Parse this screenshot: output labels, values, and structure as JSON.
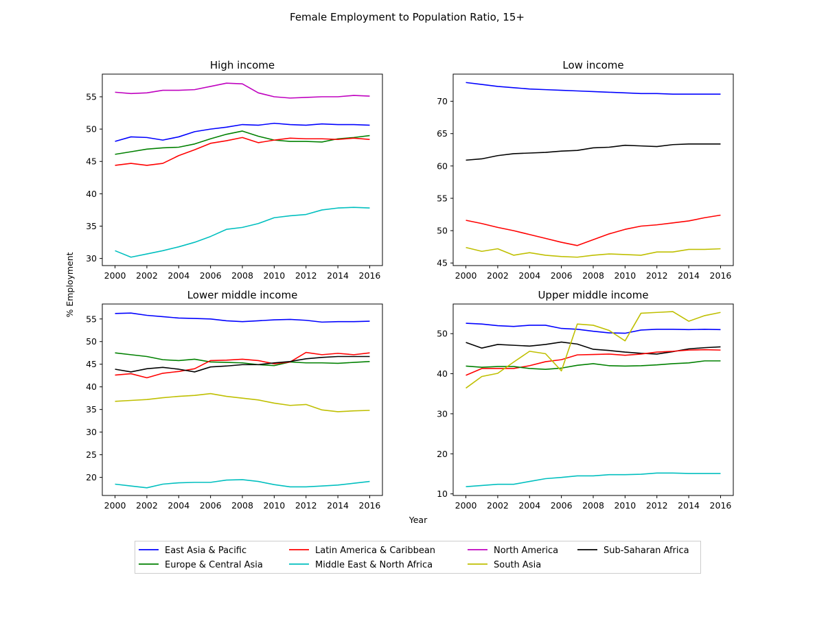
{
  "figure": {
    "title": "Female Employment to Population Ratio, 15+",
    "xlabel": "Year",
    "ylabel": "% Employment"
  },
  "colors": {
    "East Asia & Pacific": "#0000ff",
    "Europe & Central Asia": "#008000",
    "Latin America & Caribbean": "#ff0000",
    "Middle East & North Africa": "#00bfbf",
    "North America": "#bf00bf",
    "South Asia": "#bfbf00",
    "Sub-Saharan Africa": "#000000"
  },
  "legend": {
    "placement": "bottom-center",
    "entries": [
      "East Asia & Pacific",
      "Europe & Central Asia",
      "Latin America & Caribbean",
      "Middle East & North Africa",
      "North America",
      "South Asia",
      "Sub-Saharan Africa"
    ]
  },
  "chart_data": [
    {
      "type": "line",
      "title": "High income",
      "x": [
        2000,
        2001,
        2002,
        2003,
        2004,
        2005,
        2006,
        2007,
        2008,
        2009,
        2010,
        2011,
        2012,
        2013,
        2014,
        2015,
        2016
      ],
      "xticks": [
        "2000",
        "2002",
        "2004",
        "2006",
        "2008",
        "2010",
        "2012",
        "2014",
        "2016"
      ],
      "yticks": [
        "30",
        "35",
        "40",
        "45",
        "50",
        "55"
      ],
      "xlim": [
        1999.2,
        2016.8
      ],
      "ylim": [
        28.9,
        58.5
      ],
      "series": [
        {
          "name": "North America",
          "values": [
            55.7,
            55.5,
            55.6,
            56.0,
            56.0,
            56.1,
            56.6,
            57.1,
            57.0,
            55.6,
            55.0,
            54.8,
            54.9,
            55.0,
            55.0,
            55.2,
            55.1
          ]
        },
        {
          "name": "East Asia & Pacific",
          "values": [
            48.1,
            48.8,
            48.7,
            48.3,
            48.8,
            49.6,
            50.0,
            50.3,
            50.7,
            50.6,
            50.9,
            50.7,
            50.6,
            50.8,
            50.7,
            50.7,
            50.6
          ]
        },
        {
          "name": "Europe & Central Asia",
          "values": [
            46.1,
            46.5,
            46.9,
            47.1,
            47.2,
            47.7,
            48.5,
            49.2,
            49.7,
            48.9,
            48.3,
            48.1,
            48.1,
            48.0,
            48.5,
            48.7,
            49.0
          ]
        },
        {
          "name": "Latin America & Caribbean",
          "values": [
            44.4,
            44.7,
            44.4,
            44.7,
            45.9,
            46.8,
            47.8,
            48.2,
            48.7,
            47.9,
            48.3,
            48.6,
            48.5,
            48.5,
            48.4,
            48.6,
            48.4
          ]
        },
        {
          "name": "Middle East & North Africa",
          "values": [
            31.2,
            30.2,
            30.7,
            31.2,
            31.8,
            32.5,
            33.4,
            34.5,
            34.8,
            35.4,
            36.3,
            36.6,
            36.8,
            37.5,
            37.8,
            37.9,
            37.8
          ]
        }
      ]
    },
    {
      "type": "line",
      "title": "Low income",
      "x": [
        2000,
        2001,
        2002,
        2003,
        2004,
        2005,
        2006,
        2007,
        2008,
        2009,
        2010,
        2011,
        2012,
        2013,
        2014,
        2015,
        2016
      ],
      "xticks": [
        "2000",
        "2002",
        "2004",
        "2006",
        "2008",
        "2010",
        "2012",
        "2014",
        "2016"
      ],
      "yticks": [
        "45",
        "50",
        "55",
        "60",
        "65",
        "70"
      ],
      "xlim": [
        1999.2,
        2016.8
      ],
      "ylim": [
        44.6,
        74.2
      ],
      "series": [
        {
          "name": "East Asia & Pacific",
          "values": [
            72.9,
            72.6,
            72.3,
            72.1,
            71.9,
            71.8,
            71.7,
            71.6,
            71.5,
            71.4,
            71.3,
            71.2,
            71.2,
            71.1,
            71.1,
            71.1,
            71.1
          ]
        },
        {
          "name": "Sub-Saharan Africa",
          "values": [
            60.9,
            61.1,
            61.6,
            61.9,
            62.0,
            62.1,
            62.3,
            62.4,
            62.8,
            62.9,
            63.2,
            63.1,
            63.0,
            63.3,
            63.4,
            63.4,
            63.4
          ]
        },
        {
          "name": "Latin America & Caribbean",
          "values": [
            51.6,
            51.1,
            50.5,
            50.0,
            49.4,
            48.8,
            48.2,
            47.7,
            48.6,
            49.5,
            50.2,
            50.7,
            50.9,
            51.2,
            51.5,
            52.0,
            52.4
          ]
        },
        {
          "name": "South Asia",
          "values": [
            47.4,
            46.8,
            47.2,
            46.2,
            46.6,
            46.2,
            46.0,
            45.9,
            46.2,
            46.4,
            46.3,
            46.2,
            46.7,
            46.7,
            47.1,
            47.1,
            47.2
          ]
        }
      ]
    },
    {
      "type": "line",
      "title": "Lower middle income",
      "x": [
        2000,
        2001,
        2002,
        2003,
        2004,
        2005,
        2006,
        2007,
        2008,
        2009,
        2010,
        2011,
        2012,
        2013,
        2014,
        2015,
        2016
      ],
      "xticks": [
        "2000",
        "2002",
        "2004",
        "2006",
        "2008",
        "2010",
        "2012",
        "2014",
        "2016"
      ],
      "yticks": [
        "20",
        "25",
        "30",
        "35",
        "40",
        "45",
        "50",
        "55"
      ],
      "xlim": [
        1999.2,
        2016.8
      ],
      "ylim": [
        16.0,
        58.3
      ],
      "series": [
        {
          "name": "East Asia & Pacific",
          "values": [
            56.2,
            56.3,
            55.8,
            55.5,
            55.2,
            55.1,
            55.0,
            54.6,
            54.4,
            54.6,
            54.8,
            54.9,
            54.7,
            54.3,
            54.4,
            54.4,
            54.5
          ]
        },
        {
          "name": "Europe & Central Asia",
          "values": [
            47.5,
            47.1,
            46.7,
            46.0,
            45.8,
            46.1,
            45.5,
            45.4,
            45.3,
            44.9,
            44.7,
            45.5,
            45.3,
            45.3,
            45.2,
            45.4,
            45.6
          ]
        },
        {
          "name": "Latin America & Caribbean",
          "values": [
            42.6,
            42.9,
            42.0,
            43.0,
            43.4,
            44.0,
            45.8,
            45.9,
            46.1,
            45.8,
            45.1,
            45.5,
            47.6,
            47.1,
            47.4,
            47.1,
            47.5
          ]
        },
        {
          "name": "Sub-Saharan Africa",
          "values": [
            43.9,
            43.3,
            44.0,
            44.3,
            43.9,
            43.3,
            44.4,
            44.6,
            44.9,
            44.9,
            45.3,
            45.6,
            46.2,
            46.5,
            46.7,
            46.7,
            46.7
          ]
        },
        {
          "name": "South Asia",
          "values": [
            36.8,
            37.0,
            37.2,
            37.6,
            37.9,
            38.1,
            38.5,
            37.9,
            37.5,
            37.1,
            36.4,
            35.9,
            36.1,
            34.9,
            34.5,
            34.7,
            34.8
          ]
        },
        {
          "name": "Middle East & North Africa",
          "values": [
            18.5,
            18.1,
            17.7,
            18.5,
            18.8,
            18.9,
            18.9,
            19.4,
            19.5,
            19.1,
            18.4,
            17.9,
            17.9,
            18.1,
            18.3,
            18.7,
            19.1
          ]
        }
      ]
    },
    {
      "type": "line",
      "title": "Upper middle income",
      "x": [
        2000,
        2001,
        2002,
        2003,
        2004,
        2005,
        2006,
        2007,
        2008,
        2009,
        2010,
        2011,
        2012,
        2013,
        2014,
        2015,
        2016
      ],
      "xticks": [
        "2000",
        "2002",
        "2004",
        "2006",
        "2008",
        "2010",
        "2012",
        "2014",
        "2016"
      ],
      "yticks": [
        "10",
        "20",
        "30",
        "40",
        "50"
      ],
      "xlim": [
        1999.2,
        2016.8
      ],
      "ylim": [
        9.6,
        57.4
      ],
      "series": [
        {
          "name": "East Asia & Pacific",
          "values": [
            52.6,
            52.4,
            52.0,
            51.8,
            52.1,
            52.1,
            51.3,
            51.1,
            50.6,
            50.2,
            50.1,
            50.9,
            51.1,
            51.1,
            51.0,
            51.1,
            51.0
          ]
        },
        {
          "name": "Sub-Saharan Africa",
          "values": [
            47.8,
            46.4,
            47.3,
            47.1,
            46.9,
            47.3,
            47.9,
            47.4,
            46.1,
            45.8,
            45.4,
            45.1,
            44.9,
            45.5,
            46.2,
            46.5,
            46.7
          ]
        },
        {
          "name": "Latin America & Caribbean",
          "values": [
            39.6,
            41.3,
            41.3,
            41.3,
            42.0,
            43.0,
            43.5,
            44.7,
            44.8,
            44.9,
            44.6,
            44.9,
            45.4,
            45.6,
            45.9,
            46.0,
            45.9
          ]
        },
        {
          "name": "Europe & Central Asia",
          "values": [
            41.9,
            41.6,
            41.8,
            41.8,
            41.3,
            41.1,
            41.4,
            42.1,
            42.5,
            42.0,
            41.9,
            42.0,
            42.2,
            42.5,
            42.7,
            43.2,
            43.2
          ]
        },
        {
          "name": "South Asia",
          "values": [
            36.4,
            39.3,
            40.1,
            42.9,
            45.6,
            45.0,
            40.7,
            52.4,
            52.1,
            50.8,
            48.2,
            55.1,
            55.3,
            55.5,
            53.1,
            54.5,
            55.3
          ]
        },
        {
          "name": "Middle East & North Africa",
          "values": [
            11.8,
            12.1,
            12.4,
            12.4,
            13.1,
            13.8,
            14.1,
            14.5,
            14.5,
            14.8,
            14.8,
            14.9,
            15.2,
            15.2,
            15.1,
            15.1,
            15.1
          ]
        }
      ]
    }
  ]
}
